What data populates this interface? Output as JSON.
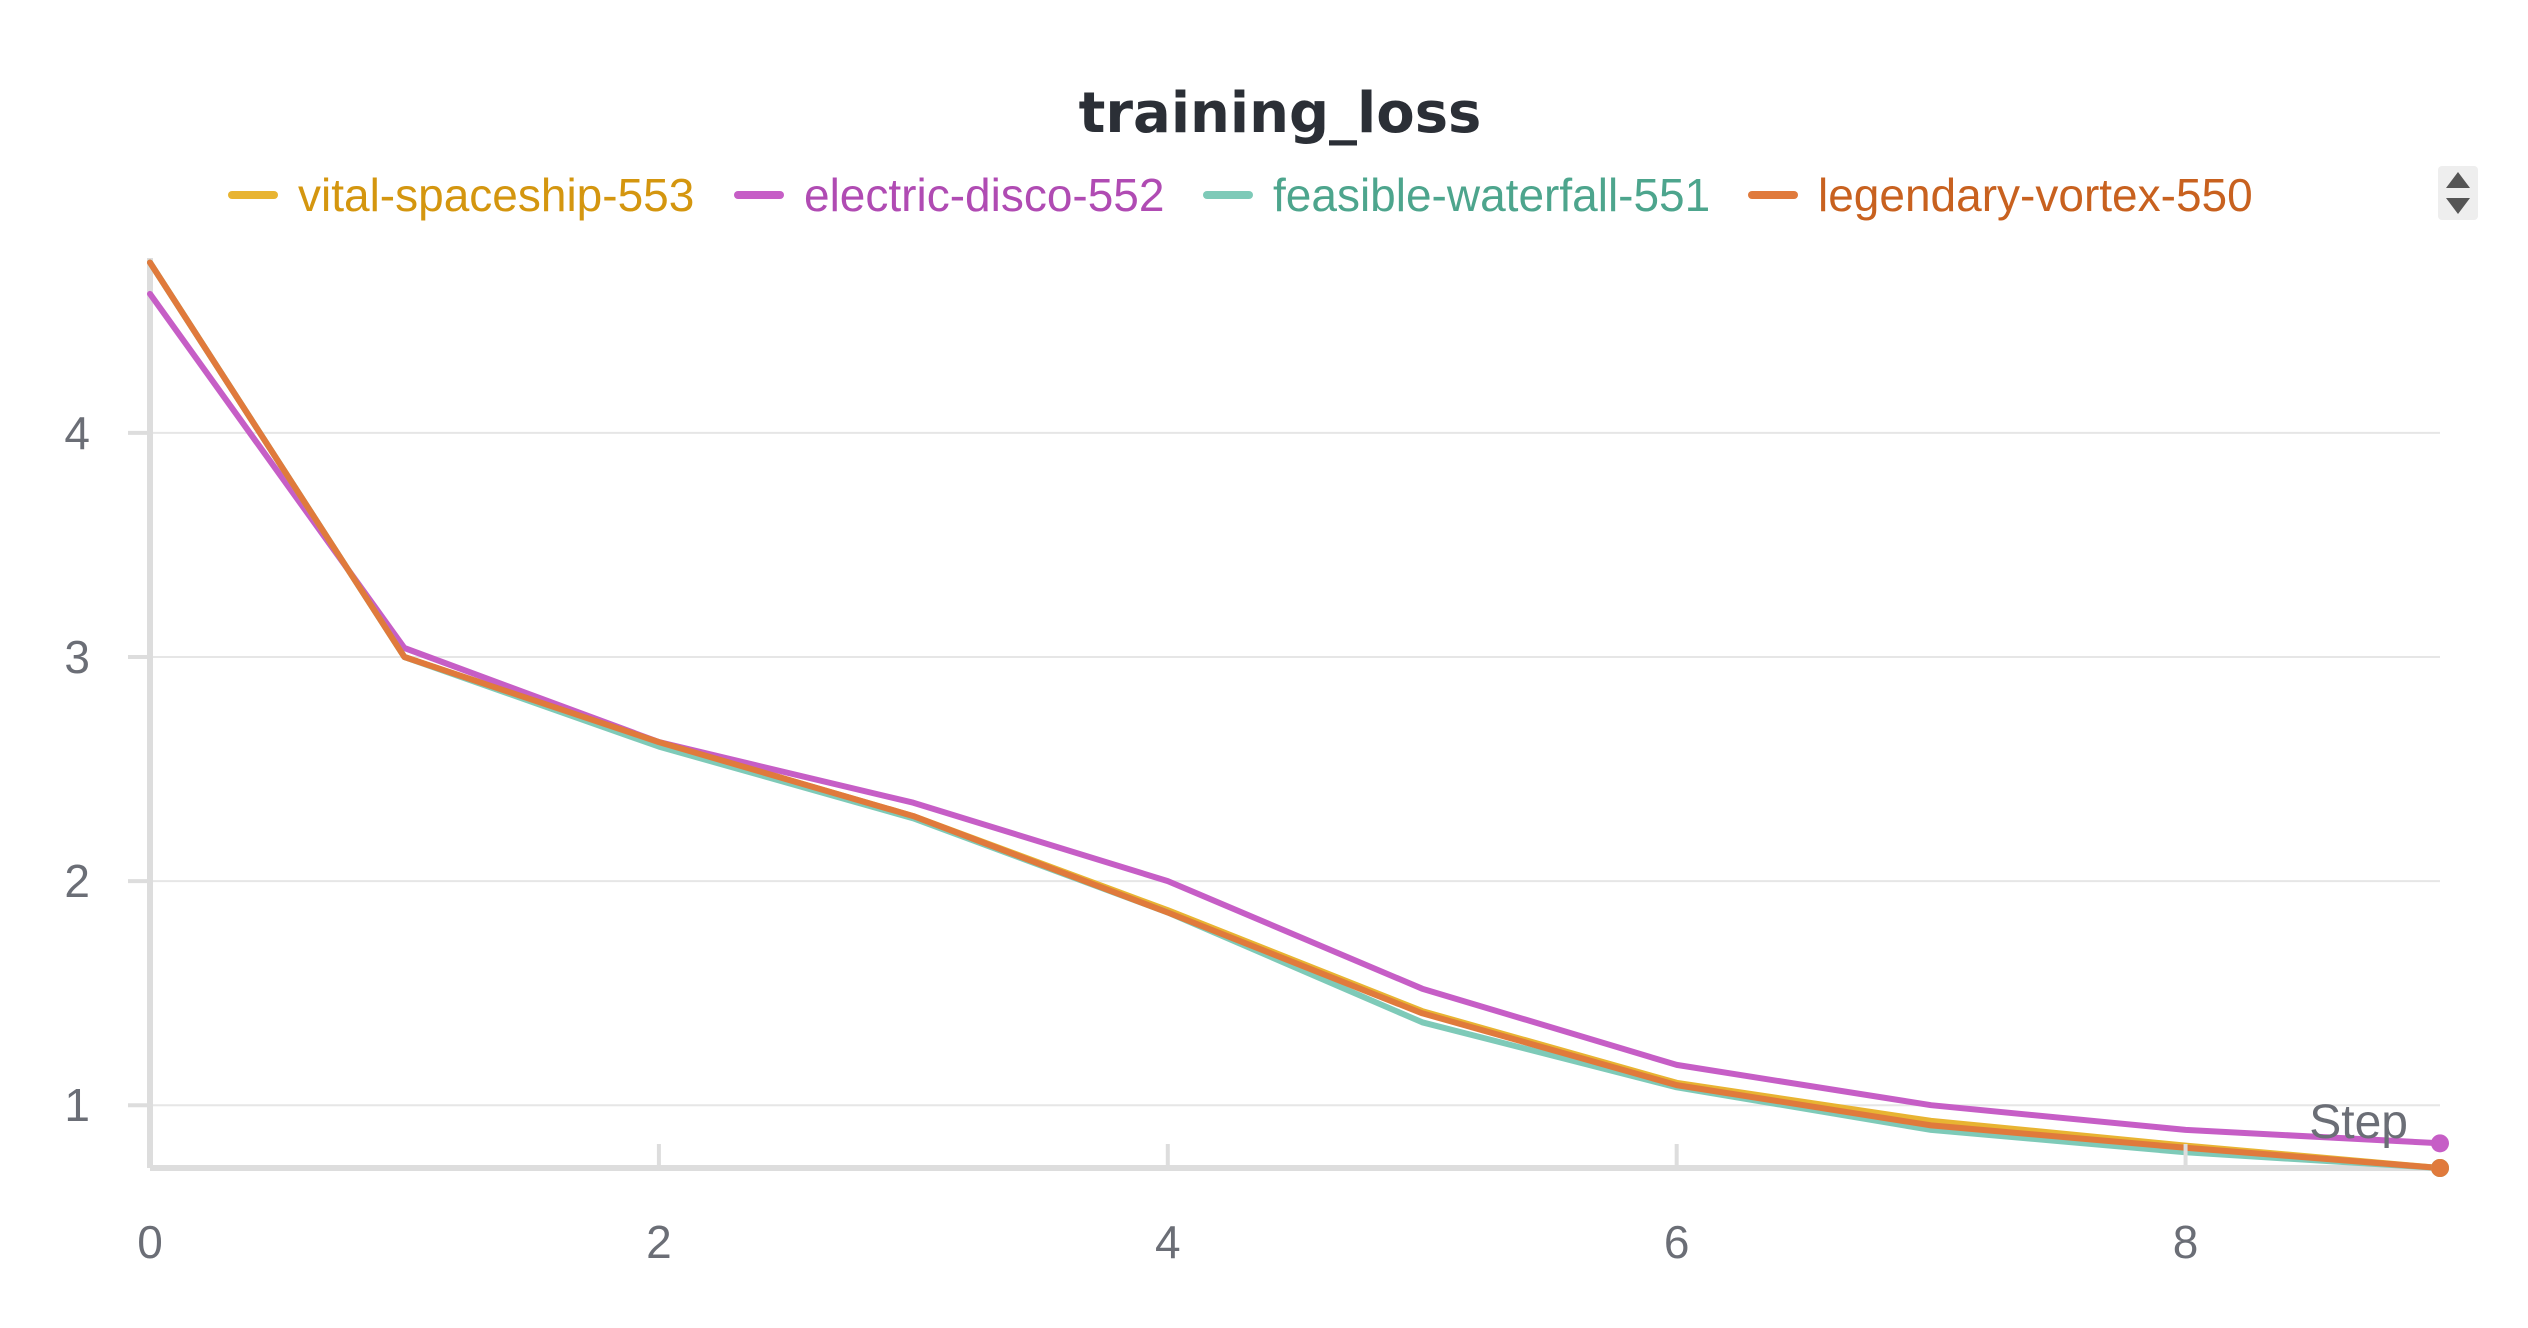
{
  "chart_data": {
    "type": "line",
    "title": "training_loss",
    "xlabel": "Step",
    "ylabel": "",
    "xlim": [
      0,
      9
    ],
    "ylim": [
      0.72,
      4.78
    ],
    "x_ticks": [
      "0",
      "2",
      "4",
      "6",
      "8"
    ],
    "y_ticks": [
      "1",
      "2",
      "3",
      "4"
    ],
    "grid": true,
    "legend_position": "top",
    "x": [
      0,
      1,
      2,
      3,
      4,
      5,
      6,
      7,
      8,
      9
    ],
    "series": [
      {
        "name": "vital-spaceship-553",
        "color": "#e8b432",
        "label_color": "#d4960f",
        "values": [
          4.76,
          3.0,
          2.62,
          2.29,
          1.87,
          1.42,
          1.1,
          0.93,
          0.82,
          0.72
        ]
      },
      {
        "name": "electric-disco-552",
        "color": "#c65ec6",
        "label_color": "#b04bb3",
        "values": [
          4.62,
          3.04,
          2.62,
          2.35,
          2.0,
          1.52,
          1.18,
          1.0,
          0.89,
          0.83
        ]
      },
      {
        "name": "feasible-waterfall-551",
        "color": "#7ecab8",
        "label_color": "#4da58d",
        "values": [
          4.76,
          3.0,
          2.6,
          2.28,
          1.86,
          1.37,
          1.08,
          0.89,
          0.79,
          0.72
        ]
      },
      {
        "name": "legendary-vortex-550",
        "color": "#e07a3c",
        "label_color": "#c8611f",
        "values": [
          4.76,
          3.0,
          2.62,
          2.29,
          1.86,
          1.41,
          1.09,
          0.91,
          0.81,
          0.72
        ]
      }
    ]
  },
  "controls": {
    "scroll_icon": "scroll-arrows-icon"
  }
}
